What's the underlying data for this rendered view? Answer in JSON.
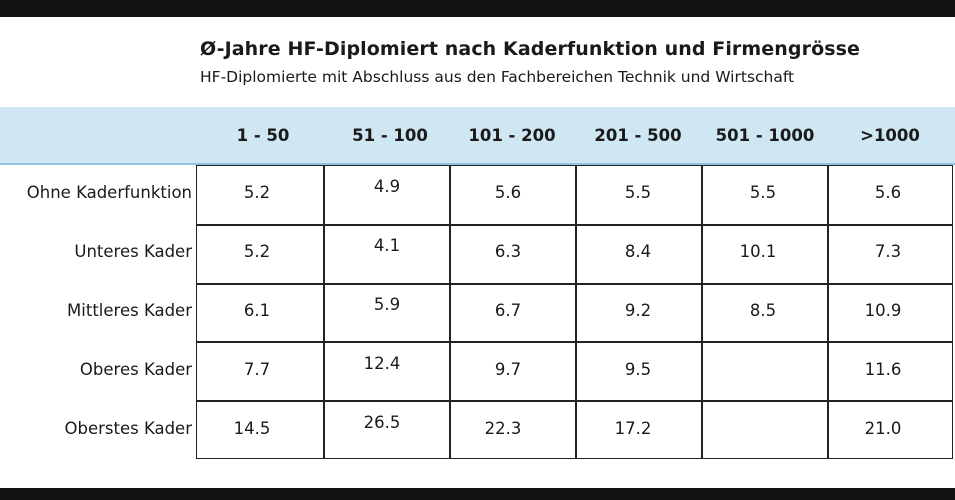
{
  "chart_data": {
    "type": "table",
    "title": "Ø-Jahre HF-Diplomiert nach Kaderfunktion und Firmengrösse",
    "subtitle": "HF-Diplomierte mit Abschluss aus den Fachbereichen Technik und Wirtschaft",
    "columns": [
      "1 - 50",
      "51 - 100",
      "101 - 200",
      "201 - 500",
      "501 - 1000",
      ">1000"
    ],
    "rows": [
      {
        "label": "Ohne Kaderfunktion",
        "values": [
          "5.2",
          "4.9",
          "5.6",
          "5.5",
          "5.5",
          "5.6"
        ]
      },
      {
        "label": "Unteres Kader",
        "values": [
          "5.2",
          "4.1",
          "6.3",
          "8.4",
          "10.1",
          "7.3"
        ]
      },
      {
        "label": "Mittleres Kader",
        "values": [
          "6.1",
          "5.9",
          "6.7",
          "9.2",
          "8.5",
          "10.9"
        ]
      },
      {
        "label": "Oberes Kader",
        "values": [
          "7.7",
          "12.4",
          "9.7",
          "9.5",
          "",
          "11.6"
        ]
      },
      {
        "label": "Oberstes Kader",
        "values": [
          "14.5",
          "26.5",
          "22.3",
          "17.2",
          "",
          "21.0"
        ]
      }
    ]
  },
  "colors": {
    "header_band": "#cfe7f3",
    "header_line": "#8ec5e0",
    "frame_bars": "#111111"
  }
}
